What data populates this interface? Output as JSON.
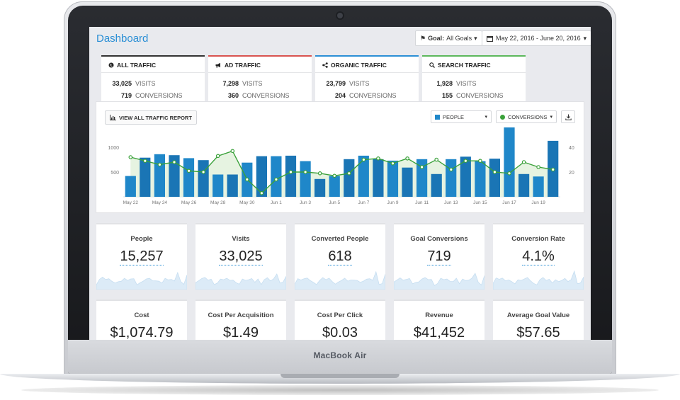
{
  "device": {
    "brand": "MacBook Air"
  },
  "header": {
    "title": "Dashboard",
    "goal_prefix": "Goal:",
    "goal_value": "All Goals",
    "date_range": "May 22, 2016 - June 20, 2016"
  },
  "tabs": [
    {
      "title": "ALL TRAFFIC",
      "icon": "globe-icon",
      "accent": "#333333",
      "visits": "33,025",
      "visits_label": "VISITS",
      "conversions": "719",
      "conversions_label": "CONVERSIONS"
    },
    {
      "title": "AD TRAFFIC",
      "icon": "megaphone-icon",
      "accent": "#d9534f",
      "visits": "7,298",
      "visits_label": "VISITS",
      "conversions": "360",
      "conversions_label": "CONVERSIONS"
    },
    {
      "title": "ORGANIC TRAFFIC",
      "icon": "share-icon",
      "accent": "#2b8fd5",
      "visits": "23,799",
      "visits_label": "VISITS",
      "conversions": "204",
      "conversions_label": "CONVERSIONS"
    },
    {
      "title": "SEARCH TRAFFIC",
      "icon": "search-icon",
      "accent": "#5cb85c",
      "visits": "1,928",
      "visits_label": "VISITS",
      "conversions": "155",
      "conversions_label": "CONVERSIONS"
    }
  ],
  "chart_controls": {
    "view_report": "VIEW ALL TRAFFIC REPORT",
    "series_left": "PEOPLE",
    "series_right": "CONVERSIONS"
  },
  "colors": {
    "bar": "#1f87c9",
    "bar_alt": "#1a75b5",
    "line": "#3aa13a",
    "area": "#e3f2de",
    "accent": "#2b8fd5"
  },
  "chart_data": {
    "type": "bar",
    "x_labels": [
      "May 22",
      "May 24",
      "May 26",
      "May 28",
      "May 30",
      "Jun 1",
      "Jun 3",
      "Jun 5",
      "Jun 7",
      "Jun 9",
      "Jun 11",
      "Jun 13",
      "Jun 15",
      "Jun 17",
      "Jun 19"
    ],
    "categories": [
      "May 22",
      "May 23",
      "May 24",
      "May 25",
      "May 26",
      "May 27",
      "May 28",
      "May 29",
      "May 30",
      "May 31",
      "Jun 1",
      "Jun 2",
      "Jun 3",
      "Jun 4",
      "Jun 5",
      "Jun 6",
      "Jun 7",
      "Jun 8",
      "Jun 9",
      "Jun 10",
      "Jun 11",
      "Jun 12",
      "Jun 13",
      "Jun 14",
      "Jun 15",
      "Jun 16",
      "Jun 17",
      "Jun 18",
      "Jun 19",
      "Jun 20"
    ],
    "y_left_ticks": [
      "1000",
      "500"
    ],
    "y_right_ticks": [
      "40",
      "20"
    ],
    "ylim_left": [
      0,
      1400
    ],
    "ylim_right": [
      0,
      56
    ],
    "series": [
      {
        "axis": "left",
        "type": "bar",
        "values": [
          420,
          790,
          860,
          840,
          780,
          740,
          450,
          450,
          690,
          820,
          820,
          830,
          720,
          360,
          420,
          760,
          830,
          760,
          730,
          590,
          760,
          460,
          760,
          810,
          720,
          770,
          1400,
          460,
          410,
          1130
        ]
      },
      {
        "axis": "right",
        "type": "line",
        "values": [
          32,
          29,
          26,
          28,
          21,
          20,
          33,
          37,
          14,
          3,
          14,
          20,
          20,
          19,
          17,
          19,
          30,
          31,
          27,
          31,
          24,
          30,
          22,
          29,
          29,
          20,
          19,
          28,
          24,
          22
        ]
      }
    ]
  },
  "kpis": [
    {
      "label": "People",
      "value": "15,257"
    },
    {
      "label": "Visits",
      "value": "33,025"
    },
    {
      "label": "Converted People",
      "value": "618"
    },
    {
      "label": "Goal Conversions",
      "value": "719"
    },
    {
      "label": "Conversion Rate",
      "value": "4.1%"
    },
    {
      "label": "Cost",
      "value": "$1,074.79"
    },
    {
      "label": "Cost Per Acquisition",
      "value": "$1.49"
    },
    {
      "label": "Cost Per Click",
      "value": "$0.03"
    },
    {
      "label": "Revenue",
      "value": "$41,452"
    },
    {
      "label": "Average Goal Value",
      "value": "$57.65"
    }
  ]
}
